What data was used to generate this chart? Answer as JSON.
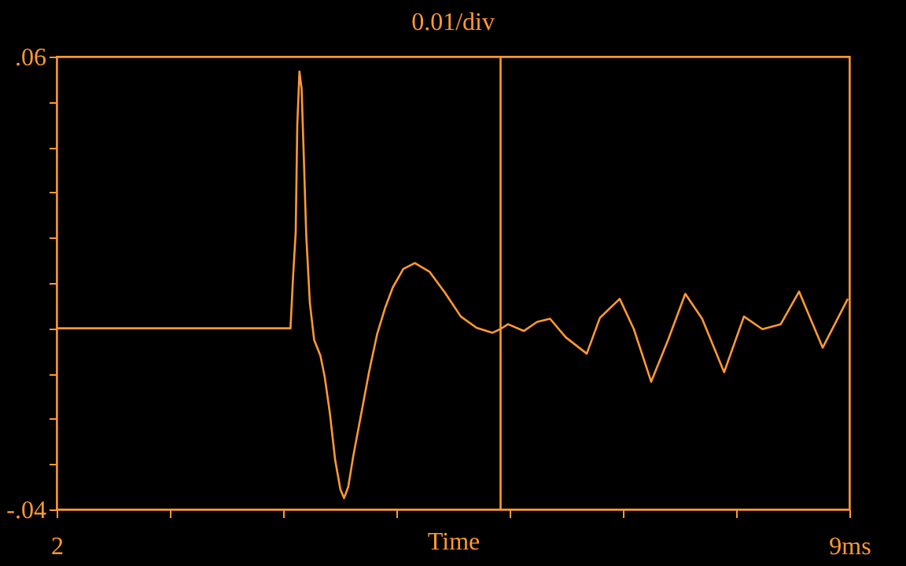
{
  "chart_data": {
    "type": "line",
    "title": "0.01/div",
    "xlabel": "Time",
    "xlim": [
      2,
      9
    ],
    "xticks": [
      {
        "value": 2,
        "label": "2"
      },
      {
        "value": 3,
        "label": null
      },
      {
        "value": 4,
        "label": null
      },
      {
        "value": 5,
        "label": null
      },
      {
        "value": 6,
        "label": null
      },
      {
        "value": 7,
        "label": null
      },
      {
        "value": 8,
        "label": null
      },
      {
        "value": 9,
        "label": "9ms"
      }
    ],
    "ylim": [
      -0.04,
      0.06
    ],
    "yticks": [
      {
        "value": -0.04,
        "label": "-.04"
      },
      {
        "value": -0.03,
        "label": null
      },
      {
        "value": -0.02,
        "label": null
      },
      {
        "value": -0.01,
        "label": null
      },
      {
        "value": 0,
        "label": null
      },
      {
        "value": 0.01,
        "label": null
      },
      {
        "value": 0.02,
        "label": null
      },
      {
        "value": 0.03,
        "label": null
      },
      {
        "value": 0.04,
        "label": null
      },
      {
        "value": 0.05,
        "label": null
      },
      {
        "value": 0.06,
        "label": ".06"
      }
    ],
    "grid": false,
    "legend": false,
    "marker": "none",
    "line_style": "solid",
    "ref_lines": [
      {
        "axis": "x",
        "value": 5.92,
        "color": "#ff9933"
      }
    ],
    "series": [
      {
        "color": "#ff9933",
        "x": [
          2,
          4.065,
          4.089,
          4.111,
          4.125,
          4.144,
          4.163,
          4.181,
          4.204,
          4.236,
          4.274,
          4.329,
          4.367,
          4.413,
          4.46,
          4.506,
          4.538,
          4.575,
          4.621,
          4.69,
          4.76,
          4.829,
          4.899,
          4.968,
          5.061,
          5.163,
          5.292,
          5.431,
          5.569,
          5.708,
          5.847,
          5.917,
          5.986,
          6.125,
          6.242,
          6.357,
          6.496,
          6.681,
          6.797,
          6.972,
          7.097,
          7.25,
          7.399,
          7.551,
          7.7,
          7.894,
          8.069,
          8.232,
          8.394,
          8.556,
          8.764,
          8.986
        ],
        "values": [
          0,
          0,
          0.0119,
          0.0212,
          0.0449,
          0.0567,
          0.053,
          0.0391,
          0.0206,
          0.0056,
          -0.0026,
          -0.006,
          -0.0107,
          -0.0188,
          -0.0292,
          -0.0356,
          -0.0375,
          -0.035,
          -0.028,
          -0.0188,
          -0.0095,
          -0.0014,
          0.0044,
          0.009,
          0.0131,
          0.0144,
          0.0125,
          0.0078,
          0.0026,
          0.0001,
          -0.001,
          -0.0002,
          0.0009,
          -0.0006,
          0.0014,
          0.0021,
          -0.002,
          -0.0056,
          0.0023,
          0.0065,
          -0.0002,
          -0.0118,
          -0.0026,
          0.0076,
          0.0021,
          -0.0097,
          0.0026,
          -0.0002,
          0.0009,
          0.0081,
          -0.0043,
          0.0065
        ]
      }
    ]
  }
}
